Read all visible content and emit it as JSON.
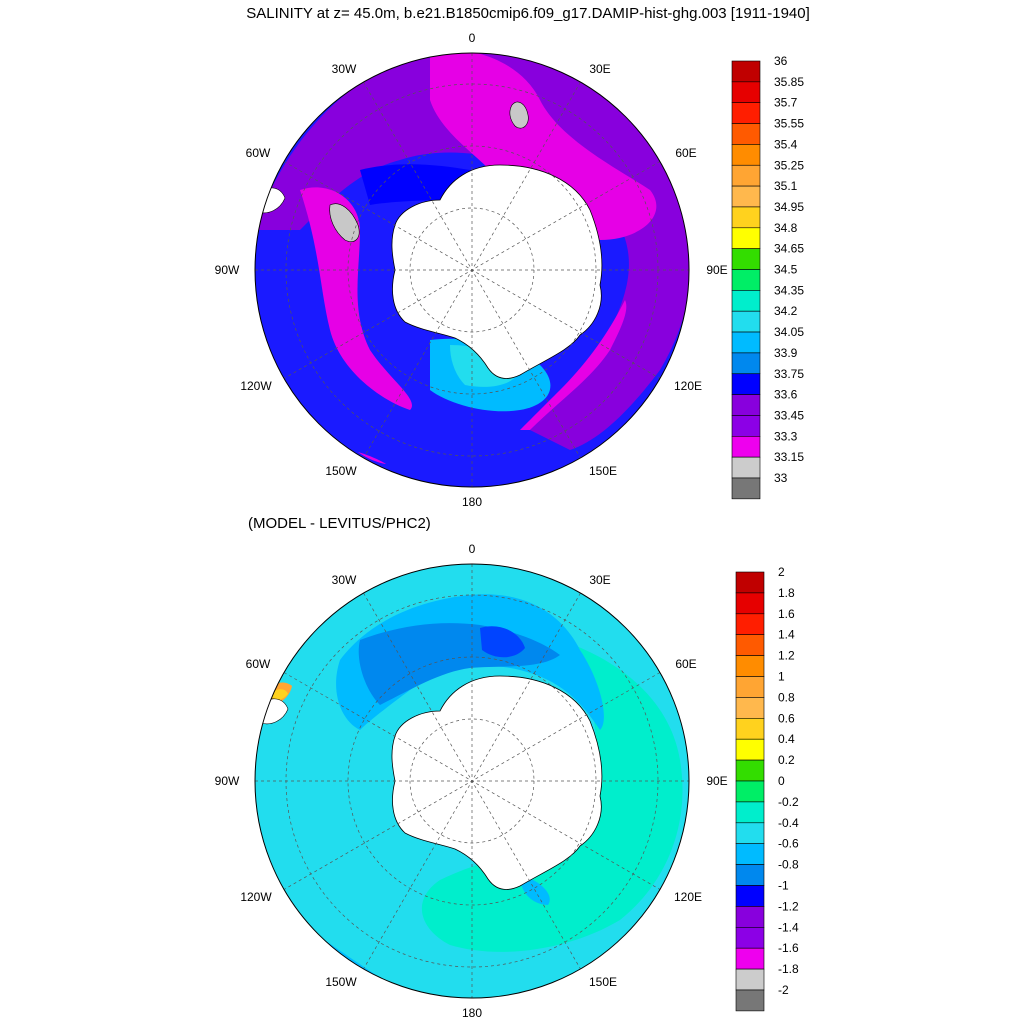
{
  "chart_data": [
    {
      "type": "contour",
      "title": "SALINITY at z=  45.0m, b.e21.B1850cmip6.f09_g17.DAMIP-hist-ghg.003 [1911-1940]",
      "projection": "south-polar-stereographic",
      "longitude_labels": [
        "0",
        "30E",
        "60E",
        "90E",
        "120E",
        "150E",
        "180",
        "150W",
        "120W",
        "90W",
        "60W",
        "30W"
      ],
      "colorbar_labels": [
        "36",
        "35.85",
        "35.7",
        "35.55",
        "35.4",
        "35.25",
        "35.1",
        "34.95",
        "34.8",
        "34.65",
        "34.5",
        "34.35",
        "34.2",
        "34.05",
        "33.9",
        "33.75",
        "33.6",
        "33.45",
        "33.3",
        "33.15",
        "33"
      ],
      "colorbar_colors": [
        "#c00000",
        "#e60000",
        "#ff1e00",
        "#ff5a00",
        "#ff8c00",
        "#ffa533",
        "#ffb84d",
        "#ffd21e",
        "#ffff00",
        "#33dd00",
        "#00ee66",
        "#00eecc",
        "#22ddee",
        "#00bbff",
        "#0088ee",
        "#0000ff",
        "#8800dd",
        "#8c00e6",
        "#ee00ee",
        "#cccccc",
        "#777777"
      ],
      "field_colors": {
        "ocean_main": "#1a1aff",
        "band_purple": "#8800dd",
        "band_magenta": "#e600e6",
        "inner_blue": "#0000ff",
        "shelf_light": "#00bbff",
        "shelf_cyan": "#22ddee",
        "land": "#ffffff",
        "ice_gray": "#c8c8c8"
      }
    },
    {
      "type": "contour",
      "title": "(MODEL - LEVITUS/PHC2)",
      "projection": "south-polar-stereographic",
      "longitude_labels": [
        "0",
        "30E",
        "60E",
        "90E",
        "120E",
        "150E",
        "180",
        "150W",
        "120W",
        "90W",
        "60W",
        "30W"
      ],
      "colorbar_labels": [
        "2",
        "1.8",
        "1.6",
        "1.4",
        "1.2",
        "1",
        "0.8",
        "0.6",
        "0.4",
        "0.2",
        "0",
        "-0.2",
        "-0.4",
        "-0.6",
        "-0.8",
        "-1",
        "-1.2",
        "-1.4",
        "-1.6",
        "-1.8",
        "-2"
      ],
      "colorbar_colors": [
        "#c00000",
        "#e60000",
        "#ff1e00",
        "#ff5a00",
        "#ff8c00",
        "#ffa533",
        "#ffb84d",
        "#ffd21e",
        "#ffff00",
        "#33dd00",
        "#00ee66",
        "#00eecc",
        "#22ddee",
        "#00bbff",
        "#0088ee",
        "#0000ff",
        "#8800dd",
        "#8c00e6",
        "#ee00ee",
        "#cccccc",
        "#777777"
      ],
      "field_colors": {
        "ocean_main": "#22ddee",
        "cyan_low": "#00eecc",
        "band_light": "#00bbff",
        "band_deep": "#0088ee",
        "patch_blue": "#0044ff",
        "land": "#ffffff"
      }
    }
  ]
}
